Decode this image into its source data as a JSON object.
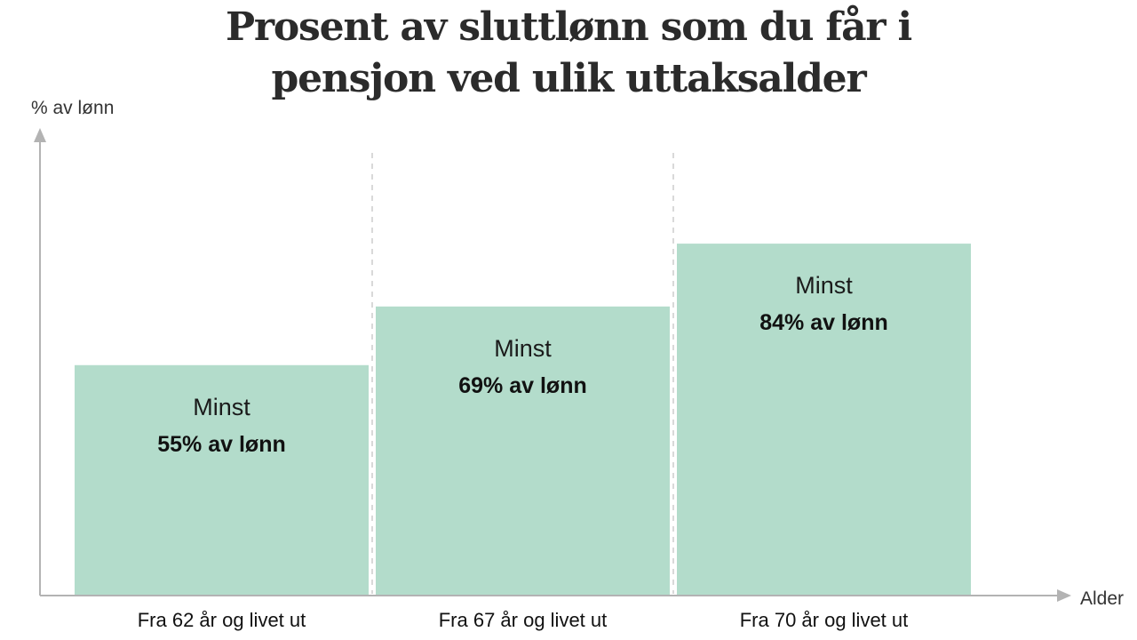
{
  "chart_data": {
    "type": "bar",
    "title_lines": [
      "Prosent av sluttlønn som du får i",
      "pensjon ved ulik uttaksalder"
    ],
    "ylabel": "% av lønn",
    "xlabel": "Alder",
    "categories": [
      "Fra 62 år og livet ut",
      "Fra 67 år og livet ut",
      "Fra 70 år og livet ut"
    ],
    "values": [
      55,
      69,
      84
    ],
    "bar_prefix": "Minst",
    "bar_labels": [
      "55% av lønn",
      "69% av lønn",
      "84% av lønn"
    ],
    "ylim": [
      0,
      129
    ],
    "grid": false,
    "bar_color": "#b3dccb",
    "axis_color": "#b3b3b3",
    "divider_color": "#d9d9d9"
  }
}
